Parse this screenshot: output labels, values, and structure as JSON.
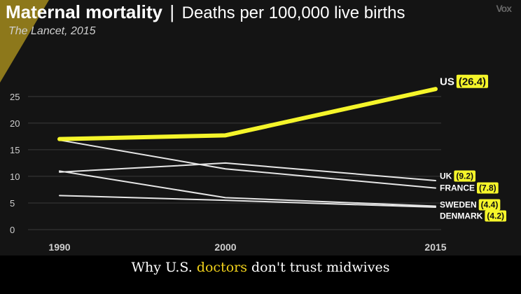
{
  "header": {
    "title": "Maternal mortality",
    "separator": "|",
    "subtitle": "Deaths per 100,000 live births",
    "source": "The Lancet, 2015",
    "logo": "Vox"
  },
  "caption": {
    "before": "Why U.S.",
    "highlight": "doctors",
    "after": "don't trust midwives"
  },
  "colors": {
    "background": "#141414",
    "highlight": "#f5f52a",
    "line": "#e6e6e6",
    "grid": "#3a3a3a",
    "label_box": "#f5f52a"
  },
  "chart_data": {
    "type": "line",
    "title": "Maternal mortality | Deaths per 100,000 live births",
    "x": [
      1990,
      2000,
      2015
    ],
    "x_ticks": [
      "1990",
      "2000",
      "2015"
    ],
    "y_ticks": [
      "0",
      "5",
      "10",
      "15",
      "20",
      "25"
    ],
    "ylim": [
      0,
      28
    ],
    "grid": true,
    "series": [
      {
        "name": "US",
        "value_label": "(26.4)",
        "values": [
          17.0,
          17.7,
          26.4
        ],
        "highlight": true
      },
      {
        "name": "UK",
        "value_label": "(9.2)",
        "values": [
          10.8,
          12.5,
          9.2
        ],
        "highlight": false
      },
      {
        "name": "FRANCE",
        "value_label": "(7.8)",
        "values": [
          16.8,
          11.4,
          7.8
        ],
        "highlight": false
      },
      {
        "name": "SWEDEN",
        "value_label": "(4.4)",
        "values": [
          11.0,
          6.0,
          4.4
        ],
        "highlight": false
      },
      {
        "name": "DENMARK",
        "value_label": "(4.2)",
        "values": [
          6.4,
          5.5,
          4.2
        ],
        "highlight": false
      }
    ]
  }
}
